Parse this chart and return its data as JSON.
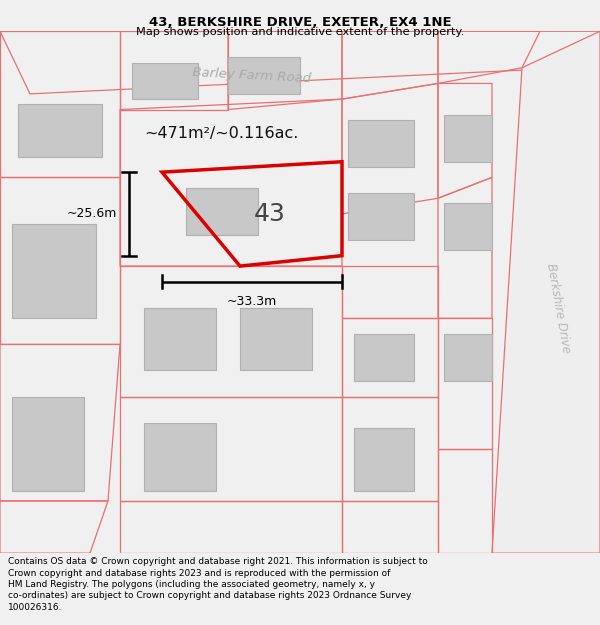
{
  "title": "43, BERKSHIRE DRIVE, EXETER, EX4 1NE",
  "subtitle": "Map shows position and indicative extent of the property.",
  "footer_line1": "Contains OS data © Crown copyright and database right 2021. This information is subject to",
  "footer_line2": "Crown copyright and database rights 2023 and is reproduced with the permission of",
  "footer_line3": "HM Land Registry. The polygons (including the associated geometry, namely x, y",
  "footer_line4": "co-ordinates) are subject to Crown copyright and database rights 2023 Ordnance Survey",
  "footer_line5": "100026316.",
  "area_label": "~471m²/~0.116ac.",
  "width_label": "~33.3m",
  "height_label": "~25.6m",
  "property_number": "43",
  "road_label_1": "Barley Farm Road",
  "road_label_2": "Berkshire Drive",
  "bg_color": "#f0f0f0",
  "map_bg": "#f8f8f8",
  "title_color": "#000000",
  "footer_color": "#000000",
  "property_outline_color": "#dd0000",
  "other_outline_color": "#e87070",
  "building_color": "#c8c8c8",
  "building_edge": "#b0b0b0",
  "dim_line_color": "#000000",
  "road_text_color": "#aaaaaa"
}
